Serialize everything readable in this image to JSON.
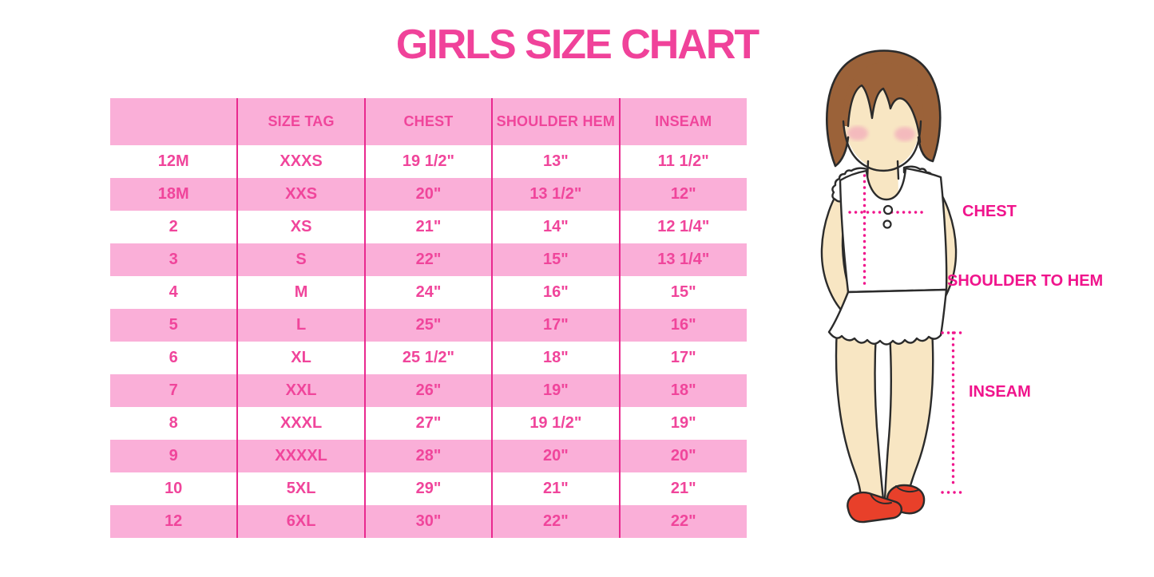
{
  "title": "GIRLS SIZE CHART",
  "chart_data": {
    "type": "table",
    "title": "GIRLS SIZE CHART",
    "columns": [
      "",
      "SIZE TAG",
      "CHEST",
      "SHOULDER HEM",
      "INSEAM"
    ],
    "rows": [
      [
        "12M",
        "XXXS",
        "19 1/2\"",
        "13\"",
        "11 1/2\""
      ],
      [
        "18M",
        "XXS",
        "20\"",
        "13 1/2\"",
        "12\""
      ],
      [
        "2",
        "XS",
        "21\"",
        "14\"",
        "12 1/4\""
      ],
      [
        "3",
        "S",
        "22\"",
        "15\"",
        "13 1/4\""
      ],
      [
        "4",
        "M",
        "24\"",
        "16\"",
        "15\""
      ],
      [
        "5",
        "L",
        "25\"",
        "17\"",
        "16\""
      ],
      [
        "6",
        "XL",
        "25 1/2\"",
        "18\"",
        "17\""
      ],
      [
        "7",
        "XXL",
        "26\"",
        "19\"",
        "18\""
      ],
      [
        "8",
        "XXXL",
        "27\"",
        "19 1/2\"",
        "19\""
      ],
      [
        "9",
        "XXXXL",
        "28\"",
        "20\"",
        "20\""
      ],
      [
        "10",
        "5XL",
        "29\"",
        "21\"",
        "21\""
      ],
      [
        "12",
        "6XL",
        "30\"",
        "22\"",
        "22\""
      ]
    ]
  },
  "figure": {
    "chest_label": "CHEST",
    "shoulder_to_hem_label": "SHOULDER TO HEM",
    "inseam_label": "INSEAM"
  },
  "colors": {
    "title_pink": "#F0429A",
    "table_text_pink": "#F0459B",
    "row_pink": "#FAAFD8",
    "divider_pink": "#E9298F",
    "label_magenta": "#F0148C",
    "hair_brown": "#9B6239",
    "skin": "#F8E6C3",
    "blush_pink": "#F2A4BA",
    "shoe_red": "#E8402A",
    "outline_dark": "#2B2B2B",
    "background": "#FFFFFF"
  }
}
